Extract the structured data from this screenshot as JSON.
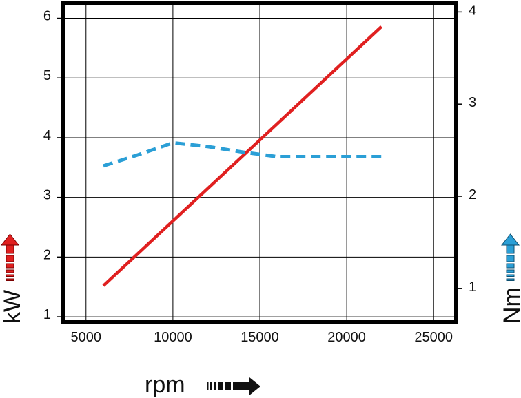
{
  "chart_data": {
    "type": "line",
    "x_axis": {
      "label": "rpm",
      "ticks": [
        "5000",
        "10000",
        "15000",
        "20000",
        "25000"
      ],
      "range": [
        3700,
        26300
      ]
    },
    "y_left": {
      "label": "kW",
      "ticks": [
        "1",
        "2",
        "3",
        "4",
        "5",
        "6"
      ],
      "range": [
        0.92,
        6.26
      ]
    },
    "y_right": {
      "label": "Nm",
      "ticks": [
        "1",
        "2",
        "3",
        "4"
      ],
      "range": [
        0.64,
        4.1
      ]
    },
    "grid": true,
    "series": [
      {
        "axis": "left",
        "style": "solid",
        "color": "#e02020",
        "x": [
          6000,
          22000
        ],
        "y": [
          1.52,
          5.86
        ]
      },
      {
        "axis": "right",
        "style": "dashed",
        "color": "#2b9fd6",
        "x": [
          6000,
          8000,
          10000,
          12000,
          14000,
          16000,
          18000,
          20000,
          22000
        ],
        "y": [
          2.33,
          2.45,
          2.58,
          2.54,
          2.48,
          2.43,
          2.43,
          2.43,
          2.43
        ]
      }
    ],
    "legend_arrows": {
      "kW": "#e02020",
      "Nm": "#2b9fd6",
      "rpm": "#111111"
    }
  }
}
